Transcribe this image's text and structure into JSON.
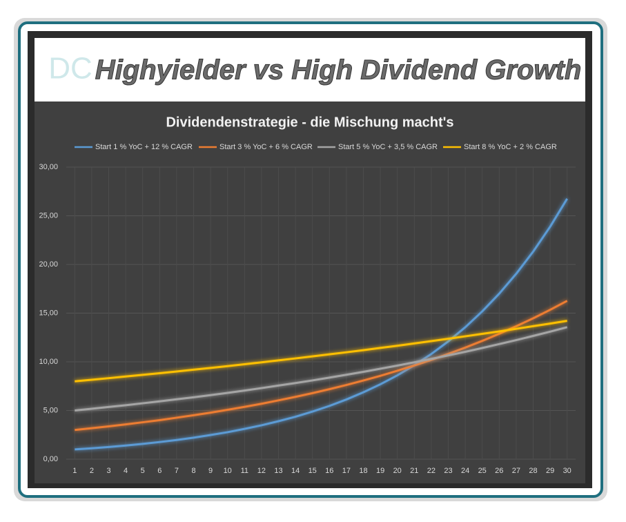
{
  "header": {
    "logo": "DC",
    "title": "Highyielder vs High Dividend Growth"
  },
  "chart_data": {
    "type": "line",
    "title": "Dividendenstrategie - die Mischung macht's",
    "categories": [
      1,
      2,
      3,
      4,
      5,
      6,
      7,
      8,
      9,
      10,
      11,
      12,
      13,
      14,
      15,
      16,
      17,
      18,
      19,
      20,
      21,
      22,
      23,
      24,
      25,
      26,
      27,
      28,
      29,
      30
    ],
    "series": [
      {
        "name": "Start 1 % YoC + 12 % CAGR",
        "color": "#5b9bd5",
        "values": [
          1.0,
          1.12,
          1.25,
          1.4,
          1.57,
          1.76,
          1.97,
          2.21,
          2.48,
          2.77,
          3.11,
          3.48,
          3.9,
          4.36,
          4.89,
          5.47,
          6.13,
          6.87,
          7.69,
          8.61,
          9.65,
          10.8,
          12.1,
          13.55,
          15.18,
          17.0,
          19.04,
          21.32,
          23.88,
          26.75
        ]
      },
      {
        "name": "Start 3 % YoC + 6 % CAGR",
        "color": "#ed7d31",
        "values": [
          3.0,
          3.18,
          3.37,
          3.57,
          3.79,
          4.01,
          4.26,
          4.51,
          4.78,
          5.07,
          5.37,
          5.69,
          6.04,
          6.4,
          6.78,
          7.19,
          7.62,
          8.08,
          8.56,
          9.08,
          9.62,
          10.2,
          10.81,
          11.46,
          12.15,
          12.88,
          13.65,
          14.47,
          15.34,
          16.26
        ]
      },
      {
        "name": "Start 5 % YoC + 3,5 % CAGR",
        "color": "#a5a5a5",
        "values": [
          5.0,
          5.18,
          5.36,
          5.54,
          5.74,
          5.94,
          6.15,
          6.36,
          6.58,
          6.81,
          7.05,
          7.3,
          7.56,
          7.82,
          8.09,
          8.38,
          8.67,
          8.97,
          9.29,
          9.61,
          9.95,
          10.3,
          10.66,
          11.03,
          11.42,
          11.82,
          12.23,
          12.66,
          13.1,
          13.56
        ]
      },
      {
        "name": "Start 8 % YoC + 2 % CAGR",
        "color": "#ffc000",
        "values": [
          8.0,
          8.16,
          8.32,
          8.49,
          8.66,
          8.83,
          9.01,
          9.19,
          9.37,
          9.56,
          9.75,
          9.95,
          10.15,
          10.35,
          10.56,
          10.77,
          10.98,
          11.2,
          11.43,
          11.65,
          11.89,
          12.13,
          12.37,
          12.62,
          12.87,
          13.12,
          13.39,
          13.66,
          13.93,
          14.21
        ]
      }
    ],
    "ylim": [
      0,
      30
    ],
    "yticks": [
      {
        "value": 0,
        "label": "0,00"
      },
      {
        "value": 5,
        "label": "5,00"
      },
      {
        "value": 10,
        "label": "10,00"
      },
      {
        "value": 15,
        "label": "15,00"
      },
      {
        "value": 20,
        "label": "20,00"
      },
      {
        "value": 25,
        "label": "25,00"
      },
      {
        "value": 30,
        "label": "30,00"
      }
    ],
    "grid": true,
    "legend": "top"
  }
}
